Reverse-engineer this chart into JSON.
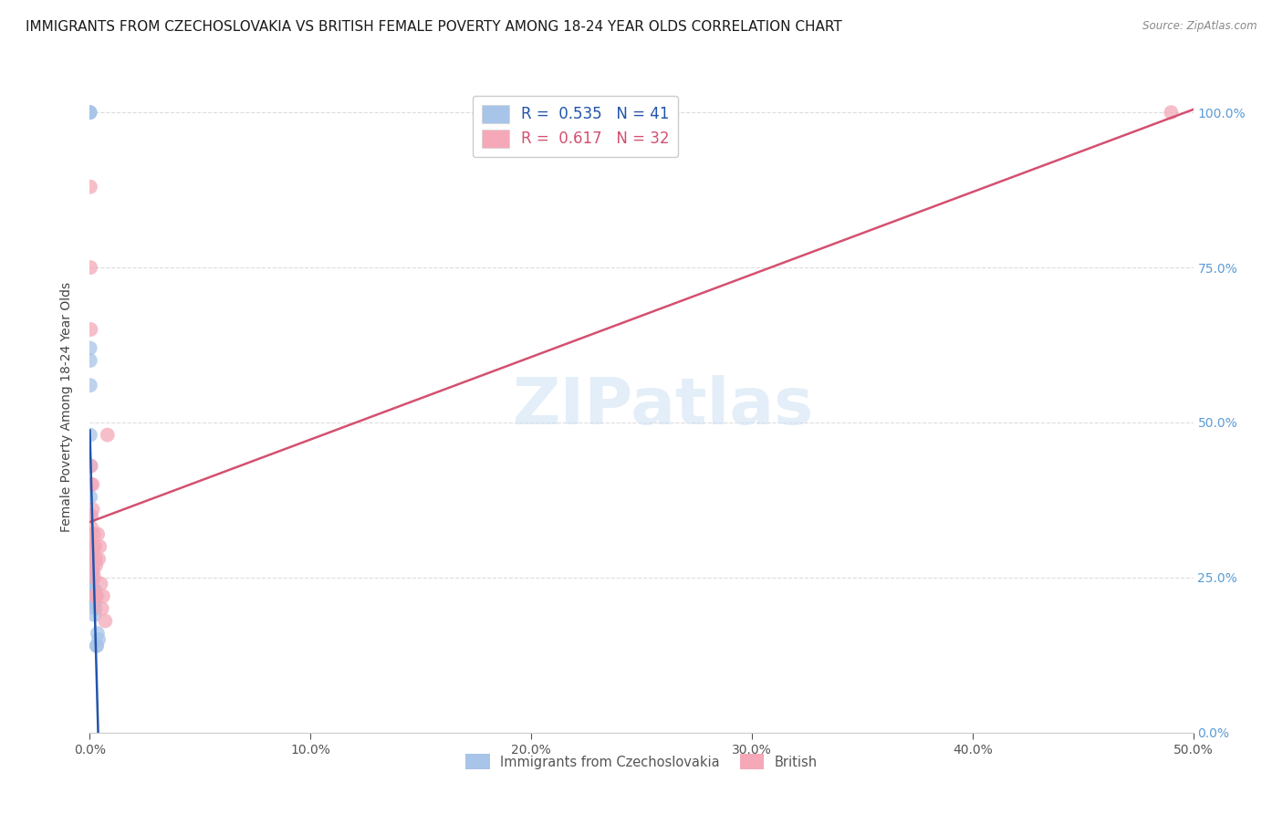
{
  "title": "IMMIGRANTS FROM CZECHOSLOVAKIA VS BRITISH FEMALE POVERTY AMONG 18-24 YEAR OLDS CORRELATION CHART",
  "source": "Source: ZipAtlas.com",
  "ylabel": "Female Poverty Among 18-24 Year Olds",
  "legend_top": [
    {
      "R": "0.535",
      "N": "41",
      "scatter_color": "#a8c4e8",
      "line_color": "#2255aa"
    },
    {
      "R": "0.617",
      "N": "32",
      "scatter_color": "#f4a8b8",
      "line_color": "#d45070"
    }
  ],
  "legend_bottom": [
    "Immigrants from Czechoslovakia",
    "British"
  ],
  "blue_x": [
    0.0,
    0.0,
    0.0001,
    0.0001,
    0.0002,
    0.0002,
    0.0002,
    0.0003,
    0.0003,
    0.0003,
    0.0004,
    0.0004,
    0.0005,
    0.0005,
    0.0006,
    0.0006,
    0.0007,
    0.0008,
    0.0008,
    0.0009,
    0.001,
    0.001,
    0.0011,
    0.0012,
    0.0013,
    0.0014,
    0.0015,
    0.0016,
    0.0017,
    0.0018,
    0.0019,
    0.002,
    0.0021,
    0.0022,
    0.0023,
    0.0025,
    0.0027,
    0.003,
    0.0032,
    0.0035,
    0.004
  ],
  "blue_y": [
    1.0,
    1.0,
    1.0,
    0.62,
    0.6,
    0.56,
    0.48,
    0.43,
    0.38,
    0.35,
    0.32,
    0.28,
    0.26,
    0.24,
    0.24,
    0.22,
    0.23,
    0.22,
    0.26,
    0.24,
    0.22,
    0.21,
    0.23,
    0.25,
    0.27,
    0.3,
    0.27,
    0.22,
    0.21,
    0.23,
    0.22,
    0.21,
    0.19,
    0.21,
    0.23,
    0.2,
    0.22,
    0.14,
    0.14,
    0.16,
    0.15
  ],
  "pink_x": [
    0.0002,
    0.0003,
    0.0004,
    0.0005,
    0.0006,
    0.0007,
    0.0008,
    0.0009,
    0.001,
    0.0012,
    0.0013,
    0.0014,
    0.0015,
    0.0016,
    0.0017,
    0.0018,
    0.0019,
    0.002,
    0.0022,
    0.0024,
    0.0026,
    0.0028,
    0.0032,
    0.0036,
    0.004,
    0.0045,
    0.005,
    0.0055,
    0.006,
    0.007,
    0.008,
    0.49
  ],
  "pink_y": [
    0.88,
    0.75,
    0.65,
    0.43,
    0.4,
    0.35,
    0.33,
    0.3,
    0.27,
    0.4,
    0.36,
    0.3,
    0.28,
    0.26,
    0.3,
    0.32,
    0.28,
    0.25,
    0.22,
    0.3,
    0.28,
    0.27,
    0.22,
    0.32,
    0.28,
    0.3,
    0.24,
    0.2,
    0.22,
    0.18,
    0.48,
    1.0
  ],
  "xmin": 0.0,
  "xmax": 0.5,
  "ymin": 0.0,
  "ymax": 1.05,
  "xticks": [
    0.0,
    0.1,
    0.2,
    0.3,
    0.4,
    0.5
  ],
  "xticklabels": [
    "0.0%",
    "10.0%",
    "20.0%",
    "30.0%",
    "40.0%",
    "50.0%"
  ],
  "right_yticks": [
    0.0,
    0.25,
    0.5,
    0.75,
    1.0
  ],
  "right_yticklabels": [
    "0.0%",
    "25.0%",
    "50.0%",
    "75.0%",
    "100.0%"
  ],
  "background_color": "#ffffff",
  "grid_color": "#dddddd",
  "title_fontsize": 11,
  "axis_label_fontsize": 10,
  "tick_fontsize": 10,
  "watermark_text": "ZIPatlas",
  "watermark_color": "#cde0f5"
}
